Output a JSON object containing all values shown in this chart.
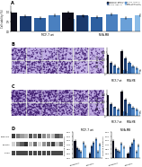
{
  "panel_a": {
    "groups": [
      "MCF-7 wt",
      "MDA-MB"
    ],
    "bars": [
      [
        1.0,
        0.78,
        0.72,
        0.85,
        0.68,
        0.8
      ],
      [
        1.0,
        0.82,
        0.76,
        0.9,
        0.72,
        0.84
      ]
    ],
    "ylabel": "Cell viability (%)",
    "ylim": [
      0,
      1.35
    ],
    "yticks": [
      0.0,
      0.5,
      1.0
    ]
  },
  "panel_b_bars": {
    "groups": [
      "MCF-7 wt",
      "MDA-MB"
    ],
    "values": [
      [
        130,
        75,
        55,
        40,
        28,
        18
      ],
      [
        155,
        105,
        78,
        52,
        40,
        22
      ]
    ],
    "ylabel": "No. of cells",
    "ylim": [
      0,
      180
    ]
  },
  "panel_c_bars": {
    "groups": [
      "MCF-7 wt",
      "MDA-MB"
    ],
    "values": [
      [
        140,
        80,
        60,
        42,
        30,
        20
      ],
      [
        165,
        112,
        82,
        56,
        44,
        26
      ]
    ],
    "ylabel": "No. of cells",
    "ylim": [
      0,
      180
    ]
  },
  "panel_d_left": {
    "group_labels": [
      "E-cadherin",
      "Vimentin"
    ],
    "bar_groups": [
      [
        1.0,
        0.55,
        0.45,
        0.38,
        0.88,
        0.68
      ],
      [
        0.28,
        0.68,
        0.88,
        1.08,
        0.38,
        0.78
      ]
    ],
    "title": "MCF-7 wt",
    "ylabel": "Relative expression",
    "ylim": [
      0,
      1.5
    ]
  },
  "panel_d_right": {
    "group_labels": [
      "E-cadherin",
      "Vimentin"
    ],
    "bar_groups": [
      [
        1.0,
        0.52,
        0.42,
        0.34,
        0.82,
        0.62
      ],
      [
        0.24,
        0.62,
        0.82,
        1.02,
        0.34,
        0.72
      ]
    ],
    "title": "MDA-MB",
    "ylabel": "Relative expression",
    "ylim": [
      0,
      1.5
    ]
  },
  "legend_labels": [
    "Rapamycin + DMSO PBS",
    "Rapamycin + si-STAT3",
    "si-STAT3 + siRNA ctrl",
    "si-STAT3 + si-STAT3",
    "siRNA + si-STAT3 ctrl",
    "miR-mimic + si-STAT3"
  ],
  "bar_colors": [
    "#0d0d1a",
    "#1a3a6e",
    "#2d5fa0",
    "#4a80c0",
    "#6aa0d8",
    "#8bbce8"
  ],
  "gel_labels": [
    "E-Cadherin",
    "Vimentin",
    "GAPDH"
  ],
  "bg_color": "#ffffff",
  "cell_bg": "#f5f0ff",
  "cell_dot_color": "#3d1a6e",
  "cell_dense_bg": "#b8a8d8"
}
